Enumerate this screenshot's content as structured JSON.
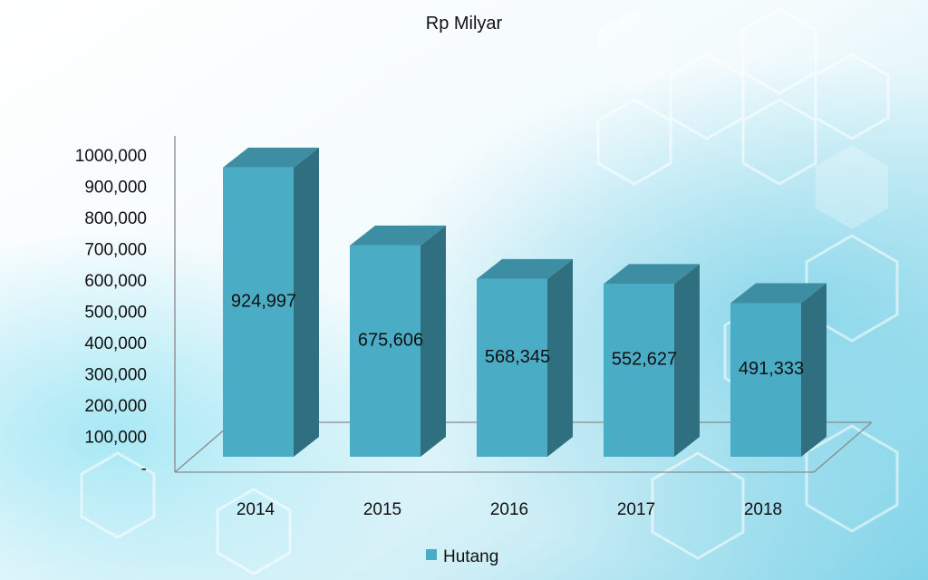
{
  "chart_data": {
    "type": "bar",
    "title": "Rp Milyar",
    "categories": [
      "2014",
      "2015",
      "2016",
      "2017",
      "2018"
    ],
    "series": [
      {
        "name": "Hutang",
        "values": [
          924997,
          675606,
          568345,
          552627,
          491333
        ]
      }
    ],
    "data_labels": [
      "924,997",
      "675,606",
      "568,345",
      "552,627",
      "491,333"
    ],
    "y_ticks": [
      "-",
      "100,000",
      "200,000",
      "300,000",
      "400,000",
      "500,000",
      "600,000",
      "700,000",
      "800,000",
      "900,000",
      "1000,000"
    ],
    "ylim": [
      0,
      1000000
    ],
    "xlabel": "",
    "ylabel": "",
    "grid": false,
    "legend_position": "bottom",
    "style": "3d-column",
    "colors": {
      "bar_front": "#4bacc6",
      "bar_side": "#2f6f80",
      "bar_top": "#3d8ea3",
      "background_light": "#e8f8fc",
      "background_accent": "#6fd3ea"
    }
  }
}
